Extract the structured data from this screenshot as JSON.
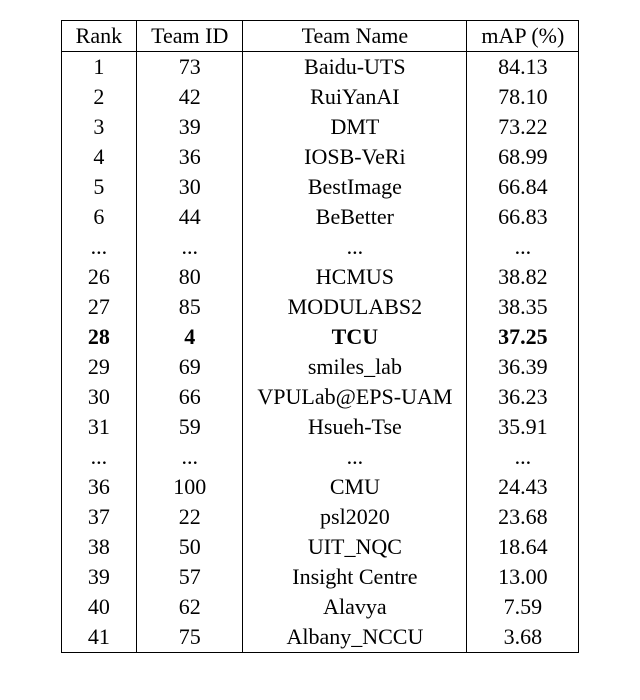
{
  "table": {
    "columns": [
      "Rank",
      "Team ID",
      "Team Name",
      "mAP (%)"
    ],
    "rows": [
      {
        "rank": "1",
        "team_id": "73",
        "team_name": "Baidu-UTS",
        "map": "84.13",
        "bold": false
      },
      {
        "rank": "2",
        "team_id": "42",
        "team_name": "RuiYanAI",
        "map": "78.10",
        "bold": false
      },
      {
        "rank": "3",
        "team_id": "39",
        "team_name": "DMT",
        "map": "73.22",
        "bold": false
      },
      {
        "rank": "4",
        "team_id": "36",
        "team_name": "IOSB-VeRi",
        "map": "68.99",
        "bold": false
      },
      {
        "rank": "5",
        "team_id": "30",
        "team_name": "BestImage",
        "map": "66.84",
        "bold": false
      },
      {
        "rank": "6",
        "team_id": "44",
        "team_name": "BeBetter",
        "map": "66.83",
        "bold": false
      },
      {
        "rank": "...",
        "team_id": "...",
        "team_name": "...",
        "map": "...",
        "bold": false
      },
      {
        "rank": "26",
        "team_id": "80",
        "team_name": "HCMUS",
        "map": "38.82",
        "bold": false
      },
      {
        "rank": "27",
        "team_id": "85",
        "team_name": "MODULABS2",
        "map": "38.35",
        "bold": false
      },
      {
        "rank": "28",
        "team_id": "4",
        "team_name": "TCU",
        "map": "37.25",
        "bold": true
      },
      {
        "rank": "29",
        "team_id": "69",
        "team_name": "smiles_lab",
        "map": "36.39",
        "bold": false
      },
      {
        "rank": "30",
        "team_id": "66",
        "team_name": "VPULab@EPS-UAM",
        "map": "36.23",
        "bold": false
      },
      {
        "rank": "31",
        "team_id": "59",
        "team_name": "Hsueh-Tse",
        "map": "35.91",
        "bold": false
      },
      {
        "rank": "...",
        "team_id": "...",
        "team_name": "...",
        "map": "...",
        "bold": false
      },
      {
        "rank": "36",
        "team_id": "100",
        "team_name": "CMU",
        "map": "24.43",
        "bold": false
      },
      {
        "rank": "37",
        "team_id": "22",
        "team_name": "psl2020",
        "map": "23.68",
        "bold": false
      },
      {
        "rank": "38",
        "team_id": "50",
        "team_name": "UIT_NQC",
        "map": "18.64",
        "bold": false
      },
      {
        "rank": "39",
        "team_id": "57",
        "team_name": "Insight Centre",
        "map": "13.00",
        "bold": false
      },
      {
        "rank": "40",
        "team_id": "62",
        "team_name": "Alavya",
        "map": "7.59",
        "bold": false
      },
      {
        "rank": "41",
        "team_id": "75",
        "team_name": "Albany_NCCU",
        "map": "3.68",
        "bold": false
      }
    ]
  }
}
